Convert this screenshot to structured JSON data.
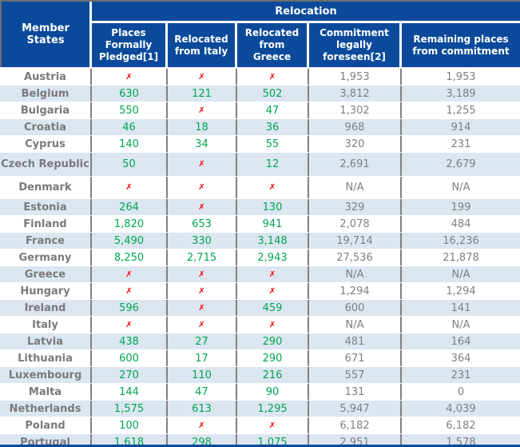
{
  "colors": {
    "blue": "#0b4a9b",
    "stripe": "#dce6f1",
    "outer_gray": "#6e6e6e",
    "cell_border": "#808080",
    "name_gray": "#7a7a7a",
    "value_gray": "#7f7f7f",
    "green": "#00a651",
    "red": "#ff0000"
  },
  "chart_data": {
    "type": "table",
    "title": "Relocation",
    "row_header": "Member States",
    "columns": [
      "Places Formally Pledged[1]",
      "Relocated from Italy",
      "Relocated from Greece",
      "Commitment legally foreseen[2]",
      "Remaining places from commitment"
    ],
    "x_mark": "✗",
    "not_available": "N/A",
    "rows": [
      {
        "name": "Austria",
        "values": [
          "✗",
          "✗",
          "✗",
          "1,953",
          "1,953"
        ]
      },
      {
        "name": "Belgium",
        "values": [
          "630",
          "121",
          "502",
          "3,812",
          "3,189"
        ]
      },
      {
        "name": "Bulgaria",
        "values": [
          "550",
          "✗",
          "47",
          "1,302",
          "1,255"
        ]
      },
      {
        "name": "Croatia",
        "values": [
          "46",
          "18",
          "36",
          "968",
          "914"
        ]
      },
      {
        "name": "Cyprus",
        "values": [
          "140",
          "34",
          "55",
          "320",
          "231"
        ]
      },
      {
        "name": "Czech Republic",
        "values": [
          "50",
          "✗",
          "12",
          "2,691",
          "2,679"
        ]
      },
      {
        "name": "Denmark",
        "values": [
          "✗",
          "✗",
          "✗",
          "N/A",
          "N/A"
        ]
      },
      {
        "name": "Estonia",
        "values": [
          "264",
          "✗",
          "130",
          "329",
          "199"
        ]
      },
      {
        "name": "Finland",
        "values": [
          "1,820",
          "653",
          "941",
          "2,078",
          "484"
        ]
      },
      {
        "name": "France",
        "values": [
          "5,490",
          "330",
          "3,148",
          "19,714",
          "16,236"
        ]
      },
      {
        "name": "Germany",
        "values": [
          "8,250",
          "2,715",
          "2,943",
          "27,536",
          "21,878"
        ]
      },
      {
        "name": "Greece",
        "values": [
          "✗",
          "✗",
          "✗",
          "N/A",
          "N/A"
        ]
      },
      {
        "name": "Hungary",
        "values": [
          "✗",
          "✗",
          "✗",
          "1,294",
          "1,294"
        ]
      },
      {
        "name": "Ireland",
        "values": [
          "596",
          "✗",
          "459",
          "600",
          "141"
        ]
      },
      {
        "name": "Italy",
        "values": [
          "✗",
          "✗",
          "✗",
          "N/A",
          "N/A"
        ]
      },
      {
        "name": "Latvia",
        "values": [
          "438",
          "27",
          "290",
          "481",
          "164"
        ]
      },
      {
        "name": "Lithuania",
        "values": [
          "600",
          "17",
          "290",
          "671",
          "364"
        ]
      },
      {
        "name": "Luxembourg",
        "values": [
          "270",
          "110",
          "216",
          "557",
          "231"
        ]
      },
      {
        "name": "Malta",
        "values": [
          "144",
          "47",
          "90",
          "131",
          "0"
        ]
      },
      {
        "name": "Netherlands",
        "values": [
          "1,575",
          "613",
          "1,295",
          "5,947",
          "4,039"
        ]
      },
      {
        "name": "Poland",
        "values": [
          "100",
          "✗",
          "✗",
          "6,182",
          "6,182"
        ]
      },
      {
        "name": "Portugal",
        "values": [
          "1,618",
          "298",
          "1,075",
          "2,951",
          "1,578"
        ]
      }
    ]
  }
}
